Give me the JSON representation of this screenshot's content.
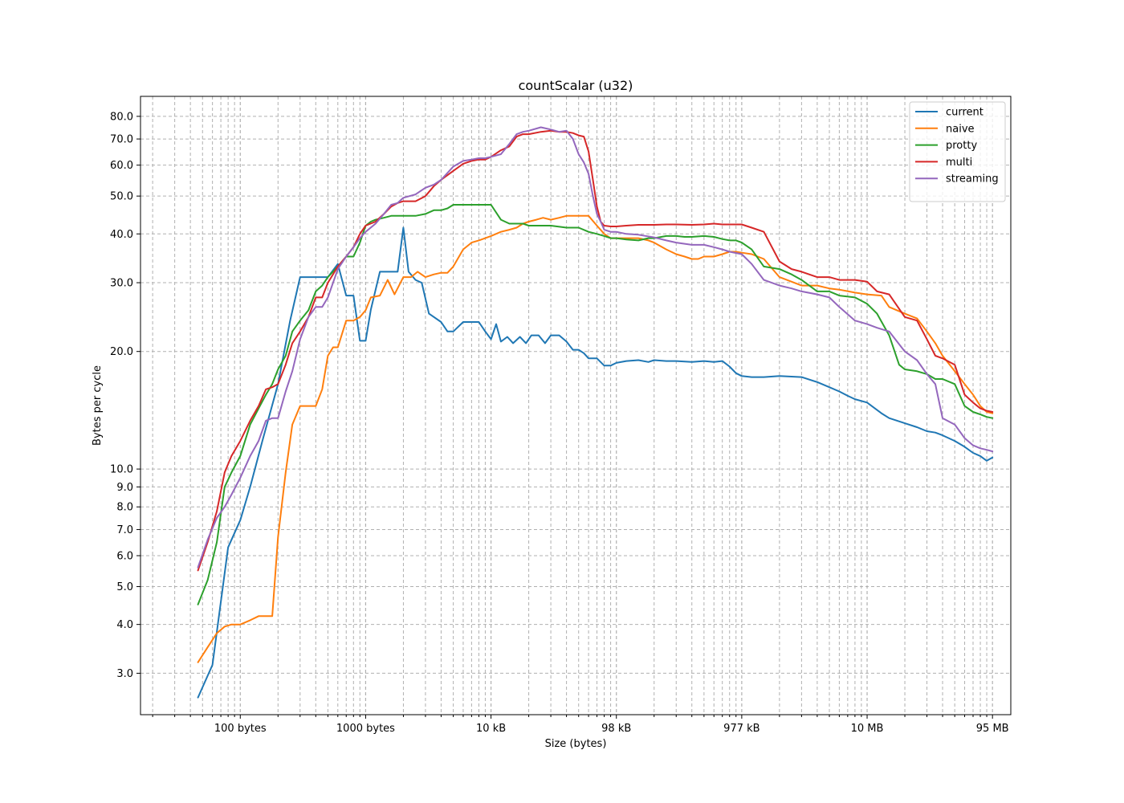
{
  "chart_data": {
    "type": "line",
    "title": "countScalar (u32)",
    "xlabel": "Size (bytes)",
    "ylabel": "Bytes per cycle",
    "x_scale": "log",
    "y_scale": "log",
    "xlim": [
      16,
      140000000
    ],
    "ylim": [
      2.35,
      90
    ],
    "grid": true,
    "legend_position": "top-right",
    "x_ticks": [
      {
        "value": 100,
        "label": "100 bytes"
      },
      {
        "value": 1000,
        "label": "1000 bytes"
      },
      {
        "value": 10000,
        "label": "10 kB"
      },
      {
        "value": 100000,
        "label": "98 kB"
      },
      {
        "value": 1000000,
        "label": "977 kB"
      },
      {
        "value": 10000000,
        "label": "10 MB"
      },
      {
        "value": 100000000,
        "label": "95 MB"
      }
    ],
    "y_ticks": [
      {
        "value": 3,
        "label": "3.0"
      },
      {
        "value": 4,
        "label": "4.0"
      },
      {
        "value": 5,
        "label": "5.0"
      },
      {
        "value": 6,
        "label": "6.0"
      },
      {
        "value": 7,
        "label": "7.0"
      },
      {
        "value": 8,
        "label": "8.0"
      },
      {
        "value": 9,
        "label": "9.0"
      },
      {
        "value": 10,
        "label": "10.0"
      },
      {
        "value": 20,
        "label": "20.0"
      },
      {
        "value": 30,
        "label": "30.0"
      },
      {
        "value": 40,
        "label": "40.0"
      },
      {
        "value": 50,
        "label": "50.0"
      },
      {
        "value": 60,
        "label": "60.0"
      },
      {
        "value": 70,
        "label": "70.0"
      },
      {
        "value": 80,
        "label": "80.0"
      }
    ],
    "series": [
      {
        "name": "current",
        "color": "#1f77b4",
        "x": [
          46,
          60,
          80,
          100,
          120,
          150,
          200,
          250,
          300,
          350,
          420,
          500,
          600,
          700,
          800,
          900,
          1000,
          1100,
          1300,
          1500,
          1800,
          2000,
          2200,
          2500,
          2800,
          3200,
          4000,
          4500,
          5000,
          6000,
          7000,
          8000,
          9000,
          10000,
          11000,
          12000,
          13500,
          15000,
          17000,
          19000,
          21000,
          24000,
          27000,
          30000,
          35000,
          40000,
          45000,
          50000,
          55000,
          60000,
          70000,
          80000,
          90000,
          100000,
          120000,
          150000,
          180000,
          200000,
          250000,
          300000,
          400000,
          500000,
          600000,
          700000,
          800000,
          900000,
          1000000,
          1200000,
          1500000,
          2000000,
          3000000,
          4000000,
          5000000,
          6000000,
          7000000,
          8000000,
          10000000,
          13000000,
          15000000,
          20000000,
          25000000,
          30000000,
          35000000,
          40000000,
          50000000,
          60000000,
          70000000,
          80000000,
          90000000,
          100000000
        ],
        "y": [
          2.6,
          3.15,
          6.3,
          7.4,
          9.0,
          11.8,
          16.5,
          24,
          31,
          31,
          31,
          31,
          33.5,
          27.8,
          27.8,
          21.3,
          21.3,
          25.6,
          32,
          32,
          32,
          41.5,
          32,
          30.5,
          30,
          25,
          23.8,
          22.5,
          22.5,
          23.8,
          23.8,
          23.8,
          22.5,
          21.5,
          23.5,
          21.2,
          21.8,
          21.0,
          21.8,
          21.0,
          22.0,
          22.0,
          21.0,
          22.0,
          22.0,
          21.2,
          20.2,
          20.2,
          19.8,
          19.2,
          19.2,
          18.4,
          18.4,
          18.7,
          18.9,
          19.0,
          18.8,
          19.0,
          18.9,
          18.9,
          18.8,
          18.9,
          18.8,
          18.9,
          18.3,
          17.6,
          17.3,
          17.2,
          17.2,
          17.3,
          17.2,
          16.7,
          16.2,
          15.8,
          15.4,
          15.1,
          14.8,
          13.9,
          13.5,
          13.1,
          12.8,
          12.5,
          12.4,
          12.2,
          11.8,
          11.4,
          11.0,
          10.8,
          10.5,
          10.7
        ]
      },
      {
        "name": "naive",
        "color": "#ff7f0e",
        "x": [
          46,
          55,
          65,
          75,
          85,
          100,
          120,
          140,
          160,
          180,
          200,
          230,
          260,
          300,
          350,
          400,
          450,
          500,
          550,
          600,
          700,
          800,
          900,
          1000,
          1100,
          1300,
          1500,
          1700,
          2000,
          2300,
          2600,
          3000,
          3500,
          4000,
          4500,
          5000,
          6000,
          7000,
          8000,
          9000,
          10000,
          12000,
          14000,
          16000,
          18000,
          20000,
          23000,
          26000,
          30000,
          35000,
          40000,
          50000,
          60000,
          70000,
          80000,
          90000,
          100000,
          120000,
          150000,
          180000,
          200000,
          250000,
          300000,
          350000,
          400000,
          450000,
          500000,
          600000,
          700000,
          800000,
          900000,
          1000000,
          1200000,
          1500000,
          2000000,
          3000000,
          4000000,
          5000000,
          6000000,
          8000000,
          10000000,
          13000000,
          15000000,
          20000000,
          25000000,
          30000000,
          35000000,
          40000000,
          50000000,
          60000000,
          70000000,
          80000000,
          90000000,
          100000000
        ],
        "y": [
          3.2,
          3.5,
          3.8,
          3.95,
          4.0,
          4.0,
          4.1,
          4.2,
          4.2,
          4.2,
          6.7,
          9.8,
          13.0,
          14.5,
          14.5,
          14.5,
          16.0,
          19.5,
          20.5,
          20.5,
          24,
          24,
          24.5,
          25.5,
          27.5,
          27.8,
          30.5,
          28,
          31,
          31,
          32,
          31,
          31.5,
          31.8,
          31.8,
          33,
          36.5,
          38,
          38.5,
          39,
          39.5,
          40.5,
          41,
          41.5,
          42.5,
          43,
          43.5,
          44,
          43.5,
          44,
          44.5,
          44.5,
          44.5,
          42,
          40,
          39,
          39,
          39,
          39,
          38.5,
          38,
          36.5,
          35.5,
          35,
          34.5,
          34.5,
          35,
          35,
          35.5,
          36,
          36,
          35.8,
          35.5,
          34.5,
          31,
          29.5,
          29.5,
          29.0,
          28.8,
          28.3,
          28.0,
          27.8,
          26.0,
          25.0,
          24.3,
          22.5,
          21.0,
          19.5,
          17.8,
          16.5,
          15.5,
          14.5,
          14.0,
          13.9
        ]
      },
      {
        "name": "protty",
        "color": "#2ca02c",
        "x": [
          46,
          55,
          65,
          75,
          85,
          100,
          120,
          140,
          160,
          180,
          200,
          230,
          260,
          300,
          350,
          400,
          450,
          500,
          600,
          700,
          800,
          900,
          1000,
          1100,
          1200,
          1400,
          1600,
          1800,
          2000,
          2500,
          3000,
          3500,
          4000,
          4500,
          5000,
          6000,
          7000,
          8000,
          10000,
          12000,
          14000,
          16000,
          18000,
          20000,
          25000,
          30000,
          40000,
          50000,
          60000,
          70000,
          80000,
          90000,
          100000,
          120000,
          150000,
          180000,
          200000,
          250000,
          300000,
          350000,
          400000,
          500000,
          600000,
          700000,
          800000,
          900000,
          1000000,
          1200000,
          1500000,
          2000000,
          2500000,
          3000000,
          4000000,
          5000000,
          6000000,
          8000000,
          10000000,
          12000000,
          15000000,
          18000000,
          20000000,
          25000000,
          30000000,
          35000000,
          40000000,
          50000000,
          60000000,
          70000000,
          80000000,
          90000000,
          100000000
        ],
        "y": [
          4.5,
          5.2,
          6.5,
          9.0,
          9.8,
          10.8,
          13.0,
          14.3,
          15.5,
          16.5,
          18.0,
          19.5,
          22.5,
          24.0,
          25.5,
          28.5,
          29.5,
          31.0,
          33.0,
          35.0,
          35.0,
          38.0,
          42.0,
          43.0,
          43.5,
          44.0,
          44.5,
          44.5,
          44.5,
          44.5,
          45.0,
          46.0,
          46.0,
          46.5,
          47.5,
          47.5,
          47.5,
          47.5,
          47.5,
          43.5,
          42.5,
          42.5,
          42.5,
          42.0,
          42.0,
          42.0,
          41.5,
          41.5,
          40.5,
          40.0,
          39.5,
          39.0,
          39.0,
          38.7,
          38.5,
          39.0,
          39.0,
          39.5,
          39.5,
          39.3,
          39.3,
          39.5,
          39.3,
          38.8,
          38.5,
          38.5,
          38.0,
          36.5,
          33.0,
          32.5,
          31.5,
          30.5,
          28.5,
          28.5,
          27.8,
          27.5,
          26.5,
          25.0,
          22.0,
          18.5,
          18.0,
          17.8,
          17.5,
          17.0,
          17.0,
          16.5,
          14.5,
          14.0,
          13.8,
          13.6,
          13.5
        ]
      },
      {
        "name": "multi",
        "color": "#d62728",
        "x": [
          46,
          55,
          65,
          75,
          85,
          100,
          120,
          140,
          160,
          180,
          200,
          230,
          260,
          300,
          350,
          400,
          450,
          500,
          600,
          700,
          800,
          900,
          1000,
          1200,
          1400,
          1600,
          1800,
          2000,
          2500,
          3000,
          3500,
          4000,
          5000,
          6000,
          7000,
          8000,
          9000,
          10000,
          12000,
          14000,
          16000,
          18000,
          20000,
          25000,
          30000,
          35000,
          40000,
          45000,
          50000,
          55000,
          60000,
          65000,
          70000,
          75000,
          80000,
          90000,
          100000,
          120000,
          150000,
          200000,
          250000,
          300000,
          400000,
          500000,
          600000,
          700000,
          800000,
          1000000,
          1200000,
          1500000,
          2000000,
          2500000,
          3000000,
          4000000,
          5000000,
          6000000,
          8000000,
          10000000,
          12000000,
          15000000,
          20000000,
          25000000,
          30000000,
          35000000,
          40000000,
          50000000,
          60000000,
          70000000,
          80000000,
          90000000,
          100000000
        ],
        "y": [
          5.5,
          6.5,
          7.8,
          9.8,
          10.8,
          11.8,
          13.3,
          14.5,
          16.0,
          16.2,
          16.5,
          18.5,
          21.0,
          22.5,
          24.5,
          27.5,
          27.5,
          30.0,
          33.0,
          35.0,
          37.0,
          40.0,
          42.0,
          43.0,
          45.0,
          47.0,
          48.0,
          48.5,
          48.5,
          50.0,
          53.0,
          55.0,
          58.0,
          60.5,
          61.5,
          62.0,
          62.0,
          63.0,
          65.5,
          67.0,
          71.0,
          72.0,
          72.0,
          73.0,
          73.5,
          73.0,
          73.0,
          72.5,
          71.5,
          71.0,
          65.0,
          55.0,
          47.0,
          43.0,
          42.0,
          41.8,
          41.8,
          42.0,
          42.2,
          42.2,
          42.3,
          42.3,
          42.2,
          42.3,
          42.5,
          42.3,
          42.3,
          42.3,
          41.5,
          40.5,
          34.0,
          32.5,
          32.0,
          31.0,
          31.0,
          30.5,
          30.5,
          30.2,
          28.5,
          28.0,
          24.5,
          24.0,
          21.5,
          19.5,
          19.2,
          18.5,
          15.5,
          14.8,
          14.3,
          14.1,
          14.0
        ]
      },
      {
        "name": "streaming",
        "color": "#9467bd",
        "x": [
          46,
          55,
          65,
          75,
          85,
          100,
          120,
          140,
          160,
          180,
          200,
          230,
          260,
          300,
          350,
          400,
          450,
          500,
          600,
          700,
          800,
          900,
          1000,
          1200,
          1400,
          1600,
          1800,
          2000,
          2500,
          3000,
          3500,
          4000,
          5000,
          6000,
          7000,
          8000,
          9000,
          10000,
          12000,
          14000,
          16000,
          18000,
          20000,
          25000,
          30000,
          35000,
          40000,
          45000,
          50000,
          55000,
          60000,
          65000,
          70000,
          75000,
          80000,
          90000,
          100000,
          120000,
          150000,
          200000,
          250000,
          300000,
          400000,
          500000,
          600000,
          700000,
          800000,
          1000000,
          1200000,
          1500000,
          2000000,
          2500000,
          3000000,
          4000000,
          5000000,
          6000000,
          8000000,
          10000000,
          12000000,
          15000000,
          20000000,
          25000000,
          30000000,
          35000000,
          40000000,
          50000000,
          60000000,
          70000000,
          80000000,
          90000000,
          100000000
        ],
        "y": [
          5.6,
          6.6,
          7.5,
          8.0,
          8.6,
          9.5,
          10.8,
          11.8,
          13.3,
          13.5,
          13.5,
          15.8,
          17.8,
          21.5,
          24.5,
          26.0,
          26.0,
          27.5,
          32.5,
          35.0,
          37.0,
          39.0,
          40.5,
          42.5,
          45.0,
          47.5,
          48.0,
          49.5,
          50.5,
          52.5,
          53.5,
          55.0,
          59.5,
          61.5,
          62.0,
          62.5,
          62.5,
          63.0,
          64.0,
          68.0,
          72.0,
          73.0,
          73.5,
          75.0,
          74.0,
          73.0,
          73.5,
          70.0,
          64.0,
          61.0,
          57.0,
          50.0,
          45.0,
          43.0,
          41.0,
          40.5,
          40.5,
          40.0,
          39.8,
          39.2,
          38.5,
          38.0,
          37.5,
          37.5,
          37.0,
          36.5,
          36.0,
          35.5,
          33.5,
          30.5,
          29.5,
          29.0,
          28.5,
          28.0,
          27.5,
          26.0,
          24.0,
          23.5,
          23.0,
          22.5,
          20.0,
          19.0,
          17.5,
          16.5,
          13.5,
          13.0,
          12.0,
          11.5,
          11.3,
          11.2,
          11.1
        ]
      }
    ]
  }
}
